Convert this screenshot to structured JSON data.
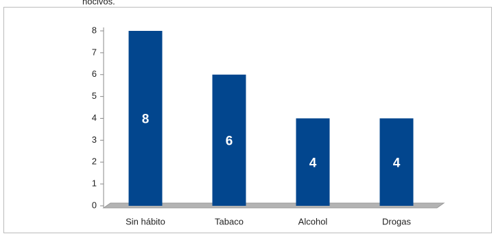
{
  "chart_data": {
    "type": "bar",
    "caption": "nocivos.",
    "categories": [
      "Sin hábito",
      "Tabaco",
      "Alcohol",
      "Drogas"
    ],
    "values": [
      8,
      6,
      4,
      4
    ],
    "color": "#02468e",
    "ylim": [
      0,
      8
    ],
    "yticks": [
      0,
      1,
      2,
      3,
      4,
      5,
      6,
      7,
      8
    ]
  }
}
